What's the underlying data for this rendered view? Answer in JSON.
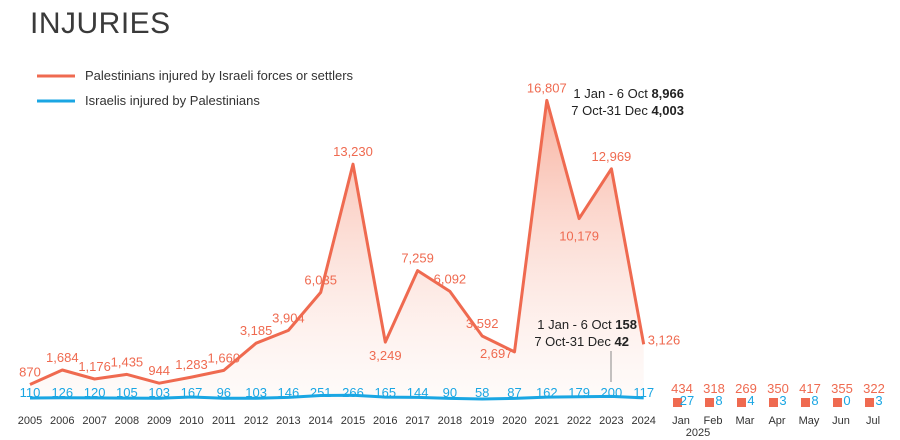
{
  "chart_data": {
    "type": "area",
    "title": "INJURIES",
    "legend": {
      "placement": "top-left",
      "items": [
        {
          "label": "Palestinians injured by Israeli forces or settlers",
          "color": "#ef6a50"
        },
        {
          "label": "Israelis injured by Palestinians",
          "color": "#1aa6e3"
        }
      ]
    },
    "x": [
      "2005",
      "2006",
      "2007",
      "2008",
      "2009",
      "2010",
      "2011",
      "2012",
      "2013",
      "2014",
      "2015",
      "2016",
      "2017",
      "2018",
      "2019",
      "2020",
      "2021",
      "2022",
      "2023",
      "2024"
    ],
    "series": [
      {
        "name": "Palestinians injured by Israeli forces or settlers",
        "color": "#ef6a50",
        "values": [
          870,
          1684,
          1176,
          1435,
          944,
          1283,
          1660,
          3185,
          3904,
          6035,
          13230,
          3249,
          7259,
          6092,
          3592,
          2697,
          16807,
          10179,
          12969,
          3126
        ],
        "labels": [
          "870",
          "1,684",
          "1,176",
          "1,435",
          "944",
          "1,283",
          "1,660",
          "3,185",
          "3,904",
          "6,035",
          "13,230",
          "3,249",
          "7,259",
          "6,092",
          "3,592",
          "2,697",
          "16,807",
          "10,179",
          "12,969",
          "3,126"
        ]
      },
      {
        "name": "Israelis injured by Palestinians",
        "color": "#1aa6e3",
        "values": [
          110,
          126,
          120,
          105,
          103,
          167,
          96,
          103,
          146,
          251,
          266,
          165,
          144,
          90,
          58,
          87,
          162,
          179,
          200,
          117
        ],
        "labels": [
          "110",
          "126",
          "120",
          "105",
          "103",
          "167",
          "96",
          "103",
          "146",
          "251",
          "266",
          "165",
          "144",
          "90",
          "58",
          "87",
          "162",
          "179",
          "200",
          "117"
        ]
      }
    ],
    "monthly_2025": {
      "months": [
        "Jan",
        "Feb",
        "Mar",
        "Apr",
        "May",
        "Jun",
        "Jul"
      ],
      "year_label": "2025",
      "palestinians": [
        434,
        318,
        269,
        350,
        417,
        355,
        322
      ],
      "israelis": [
        27,
        8,
        4,
        3,
        8,
        0,
        3
      ]
    },
    "annotations": {
      "pal_2023": {
        "line1_text": "1 Jan - 6 Oct ",
        "line1_value": "8,966",
        "line2_text": "7 Oct-31 Dec ",
        "line2_value": "4,003"
      },
      "isr_2023": {
        "line1_text": "1 Jan - 6 Oct ",
        "line1_value": "158",
        "line2_text": "7 Oct-31 Dec ",
        "line2_value": "42"
      }
    },
    "ylim": [
      0,
      17000
    ],
    "grid": false
  }
}
